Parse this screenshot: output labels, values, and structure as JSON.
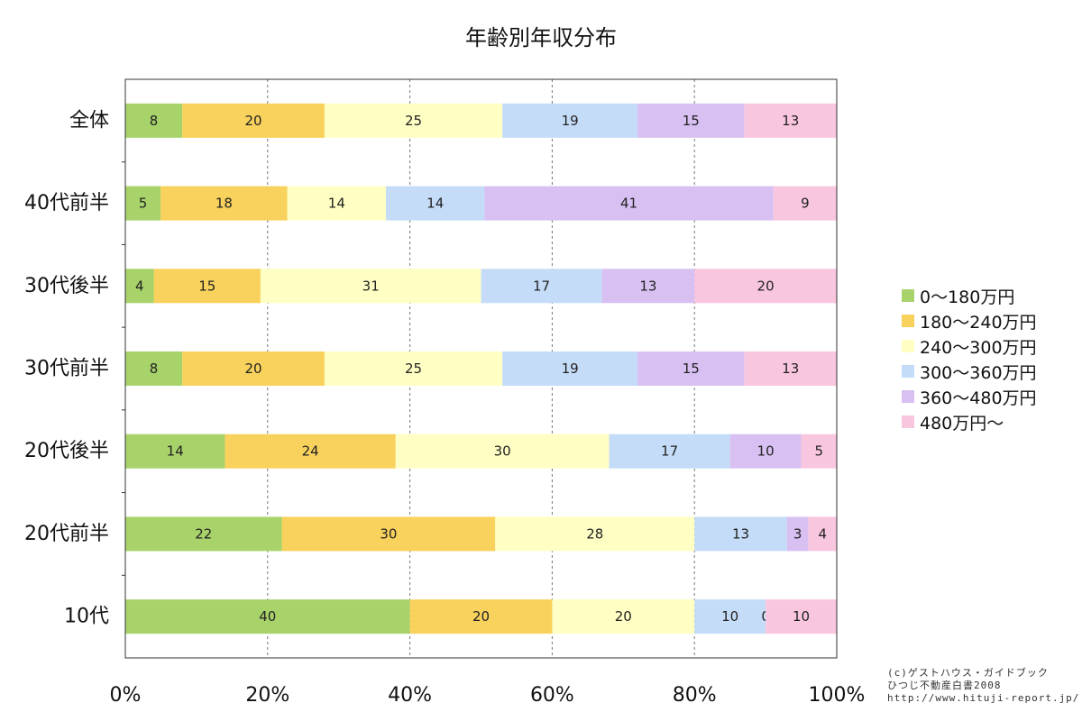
{
  "chart_data": {
    "type": "bar",
    "orientation": "horizontal",
    "stacked": true,
    "percent": true,
    "title": "年齢別年収分布",
    "categories": [
      "全体",
      "40代前半",
      "30代後半",
      "30代前半",
      "20代後半",
      "20代前半",
      "10代"
    ],
    "series": [
      {
        "name": "0〜180万円",
        "color": "#a8d36b",
        "values": [
          8,
          5,
          4,
          8,
          14,
          22,
          40
        ]
      },
      {
        "name": "180〜240万円",
        "color": "#f8d25c",
        "values": [
          20,
          18,
          15,
          20,
          24,
          30,
          20
        ]
      },
      {
        "name": "240〜300万円",
        "color": "#ffffc4",
        "values": [
          25,
          14,
          31,
          25,
          30,
          28,
          20
        ]
      },
      {
        "name": "300〜360万円",
        "color": "#c4dcf7",
        "values": [
          19,
          14,
          17,
          19,
          17,
          13,
          10
        ]
      },
      {
        "name": "360〜480万円",
        "color": "#d8c0f2",
        "values": [
          15,
          41,
          13,
          15,
          10,
          3,
          0
        ]
      },
      {
        "name": "480万円〜",
        "color": "#f9c6e0",
        "values": [
          13,
          9,
          20,
          13,
          5,
          4,
          10
        ]
      }
    ],
    "xlim": [
      0,
      100
    ],
    "xticks": [
      "0%",
      "20%",
      "40%",
      "60%",
      "80%",
      "100%"
    ],
    "grid": "vertical dashed",
    "legend_position": "right"
  },
  "credit": {
    "line1": "(c)ゲストハウス・ガイドブック",
    "line2": "ひつじ不動産白書2008",
    "line3": "http://www.hituji-report.jp/"
  }
}
